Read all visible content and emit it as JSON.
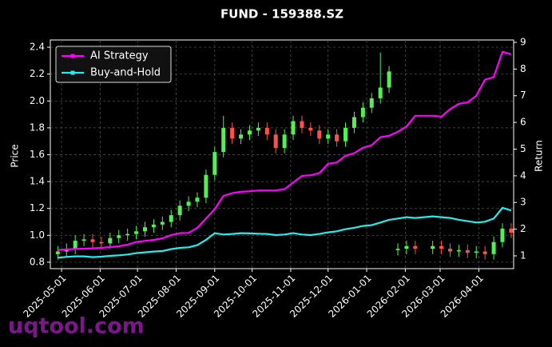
{
  "chart_data": {
    "type": "candlestick",
    "title": "FUND - 159388.SZ",
    "ylabel": "Price",
    "y2label": "Return",
    "x": [
      "2025-04-28",
      "2025-05-05",
      "2025-05-12",
      "2025-05-19",
      "2025-05-26",
      "2025-06-02",
      "2025-06-09",
      "2025-06-16",
      "2025-06-23",
      "2025-06-30",
      "2025-07-07",
      "2025-07-14",
      "2025-07-21",
      "2025-07-28",
      "2025-08-04",
      "2025-08-11",
      "2025-08-18",
      "2025-08-25",
      "2025-09-01",
      "2025-09-08",
      "2025-09-15",
      "2025-09-22",
      "2025-09-29",
      "2025-10-06",
      "2025-10-13",
      "2025-10-20",
      "2025-10-27",
      "2025-11-03",
      "2025-11-10",
      "2025-11-17",
      "2025-11-24",
      "2025-12-01",
      "2025-12-08",
      "2025-12-15",
      "2025-12-22",
      "2025-12-29",
      "2026-01-05",
      "2026-01-12",
      "2026-01-19",
      "2026-01-26",
      "2026-02-02",
      "2026-02-09",
      "2026-02-16",
      "2026-02-23",
      "2026-03-02",
      "2026-03-09",
      "2026-03-16",
      "2026-03-23",
      "2026-03-30",
      "2026-04-06",
      "2026-04-13",
      "2026-04-20",
      "2026-04-27"
    ],
    "open": [
      0.86,
      0.88,
      0.9,
      0.96,
      0.97,
      0.95,
      0.94,
      0.98,
      1.0,
      1.01,
      1.03,
      1.06,
      1.08,
      1.1,
      1.15,
      1.22,
      1.25,
      1.28,
      1.45,
      1.62,
      1.8,
      1.72,
      1.75,
      1.78,
      1.8,
      1.75,
      1.65,
      1.75,
      1.85,
      1.8,
      1.78,
      1.72,
      1.75,
      1.7,
      1.8,
      1.88,
      1.95,
      2.02,
      2.1,
      0.89,
      0.9,
      0.92,
      null,
      0.9,
      0.92,
      0.9,
      0.88,
      0.89,
      0.87,
      0.88,
      0.86,
      0.95,
      1.05
    ],
    "high": [
      0.92,
      0.94,
      1.0,
      1.01,
      1.01,
      0.99,
      1.02,
      1.04,
      1.05,
      1.07,
      1.1,
      1.12,
      1.14,
      1.19,
      1.26,
      1.29,
      1.32,
      1.49,
      1.66,
      1.89,
      1.84,
      1.79,
      1.82,
      1.84,
      1.84,
      1.79,
      1.79,
      1.89,
      1.89,
      1.84,
      1.82,
      1.79,
      1.79,
      1.84,
      1.92,
      1.99,
      2.06,
      2.36,
      2.26,
      0.94,
      0.96,
      0.96,
      null,
      0.96,
      0.96,
      0.94,
      0.93,
      0.93,
      0.92,
      0.92,
      0.99,
      1.09,
      1.09
    ],
    "low": [
      0.82,
      0.84,
      0.86,
      0.92,
      0.91,
      0.9,
      0.9,
      0.94,
      0.96,
      0.97,
      0.99,
      1.02,
      1.04,
      1.06,
      1.11,
      1.18,
      1.21,
      1.24,
      1.41,
      1.58,
      1.68,
      1.68,
      1.71,
      1.74,
      1.71,
      1.61,
      1.61,
      1.71,
      1.76,
      1.74,
      1.68,
      1.68,
      1.66,
      1.66,
      1.76,
      1.84,
      1.91,
      1.98,
      2.06,
      0.85,
      0.86,
      0.86,
      null,
      0.86,
      0.86,
      0.84,
      0.84,
      0.83,
      0.83,
      0.82,
      0.82,
      0.91,
      0.98
    ],
    "close": [
      0.88,
      0.9,
      0.96,
      0.97,
      0.95,
      0.94,
      0.98,
      1.0,
      1.01,
      1.03,
      1.06,
      1.08,
      1.1,
      1.15,
      1.22,
      1.25,
      1.28,
      1.45,
      1.62,
      1.8,
      1.72,
      1.75,
      1.78,
      1.8,
      1.75,
      1.65,
      1.75,
      1.85,
      1.8,
      1.78,
      1.72,
      1.75,
      1.7,
      1.8,
      1.88,
      1.95,
      2.02,
      2.1,
      2.22,
      0.9,
      0.92,
      0.9,
      null,
      0.92,
      0.9,
      0.88,
      0.89,
      0.87,
      0.88,
      0.86,
      0.95,
      1.05,
      1.02
    ],
    "up_color": "#55ee55",
    "down_color": "#ff4f4f",
    "series": [
      {
        "name": "AI Strategy",
        "color": "#ff00ff",
        "axis": "y2",
        "values": [
          1.22,
          1.24,
          1.26,
          1.27,
          1.28,
          1.3,
          1.33,
          1.36,
          1.42,
          1.52,
          1.56,
          1.6,
          1.66,
          1.78,
          1.85,
          1.86,
          2.05,
          2.4,
          2.75,
          3.25,
          3.35,
          3.4,
          3.42,
          3.45,
          3.45,
          3.45,
          3.5,
          3.75,
          4.0,
          4.02,
          4.1,
          4.45,
          4.5,
          4.75,
          4.85,
          5.05,
          5.15,
          5.45,
          5.5,
          5.65,
          5.85,
          6.25,
          6.25,
          6.25,
          6.22,
          6.5,
          6.7,
          6.75,
          7.0,
          7.6,
          7.7,
          8.65,
          8.55
        ]
      },
      {
        "name": "Buy-and-Hold",
        "color": "#22eeee",
        "axis": "y2",
        "values": [
          0.93,
          0.96,
          0.98,
          0.98,
          0.95,
          0.97,
          1.0,
          1.02,
          1.05,
          1.1,
          1.13,
          1.16,
          1.18,
          1.25,
          1.3,
          1.32,
          1.4,
          1.6,
          1.85,
          1.8,
          1.82,
          1.85,
          1.84,
          1.83,
          1.82,
          1.78,
          1.8,
          1.85,
          1.8,
          1.78,
          1.82,
          1.88,
          1.92,
          2.0,
          2.05,
          2.12,
          2.15,
          2.25,
          2.35,
          2.4,
          2.45,
          2.42,
          2.45,
          2.48,
          2.45,
          2.42,
          2.35,
          2.3,
          2.25,
          2.28,
          2.4,
          2.8,
          2.7
        ]
      }
    ],
    "xlim": [
      "2025-04-22",
      "2026-04-29"
    ],
    "xticks": [
      "2025-05-01",
      "2025-06-01",
      "2025-07-01",
      "2025-08-01",
      "2025-09-01",
      "2025-10-01",
      "2025-11-01",
      "2025-12-01",
      "2026-01-01",
      "2026-02-01",
      "2026-03-01",
      "2026-04-01"
    ],
    "ylim": [
      0.752,
      2.454
    ],
    "yticks": [
      0.8,
      {
        "value": 1.0,
        "label": "1.0"
      },
      1.2,
      1.4,
      1.6,
      1.8,
      {
        "value": 2.0,
        "label": "2.0"
      },
      2.2,
      2.4
    ],
    "y2lim": [
      0.52,
      9.09
    ],
    "y2ticks": [
      1,
      2,
      3,
      4,
      5,
      6,
      7,
      8,
      9
    ],
    "grid": true,
    "legend": "upper left"
  },
  "watermark": "uqtool.com"
}
